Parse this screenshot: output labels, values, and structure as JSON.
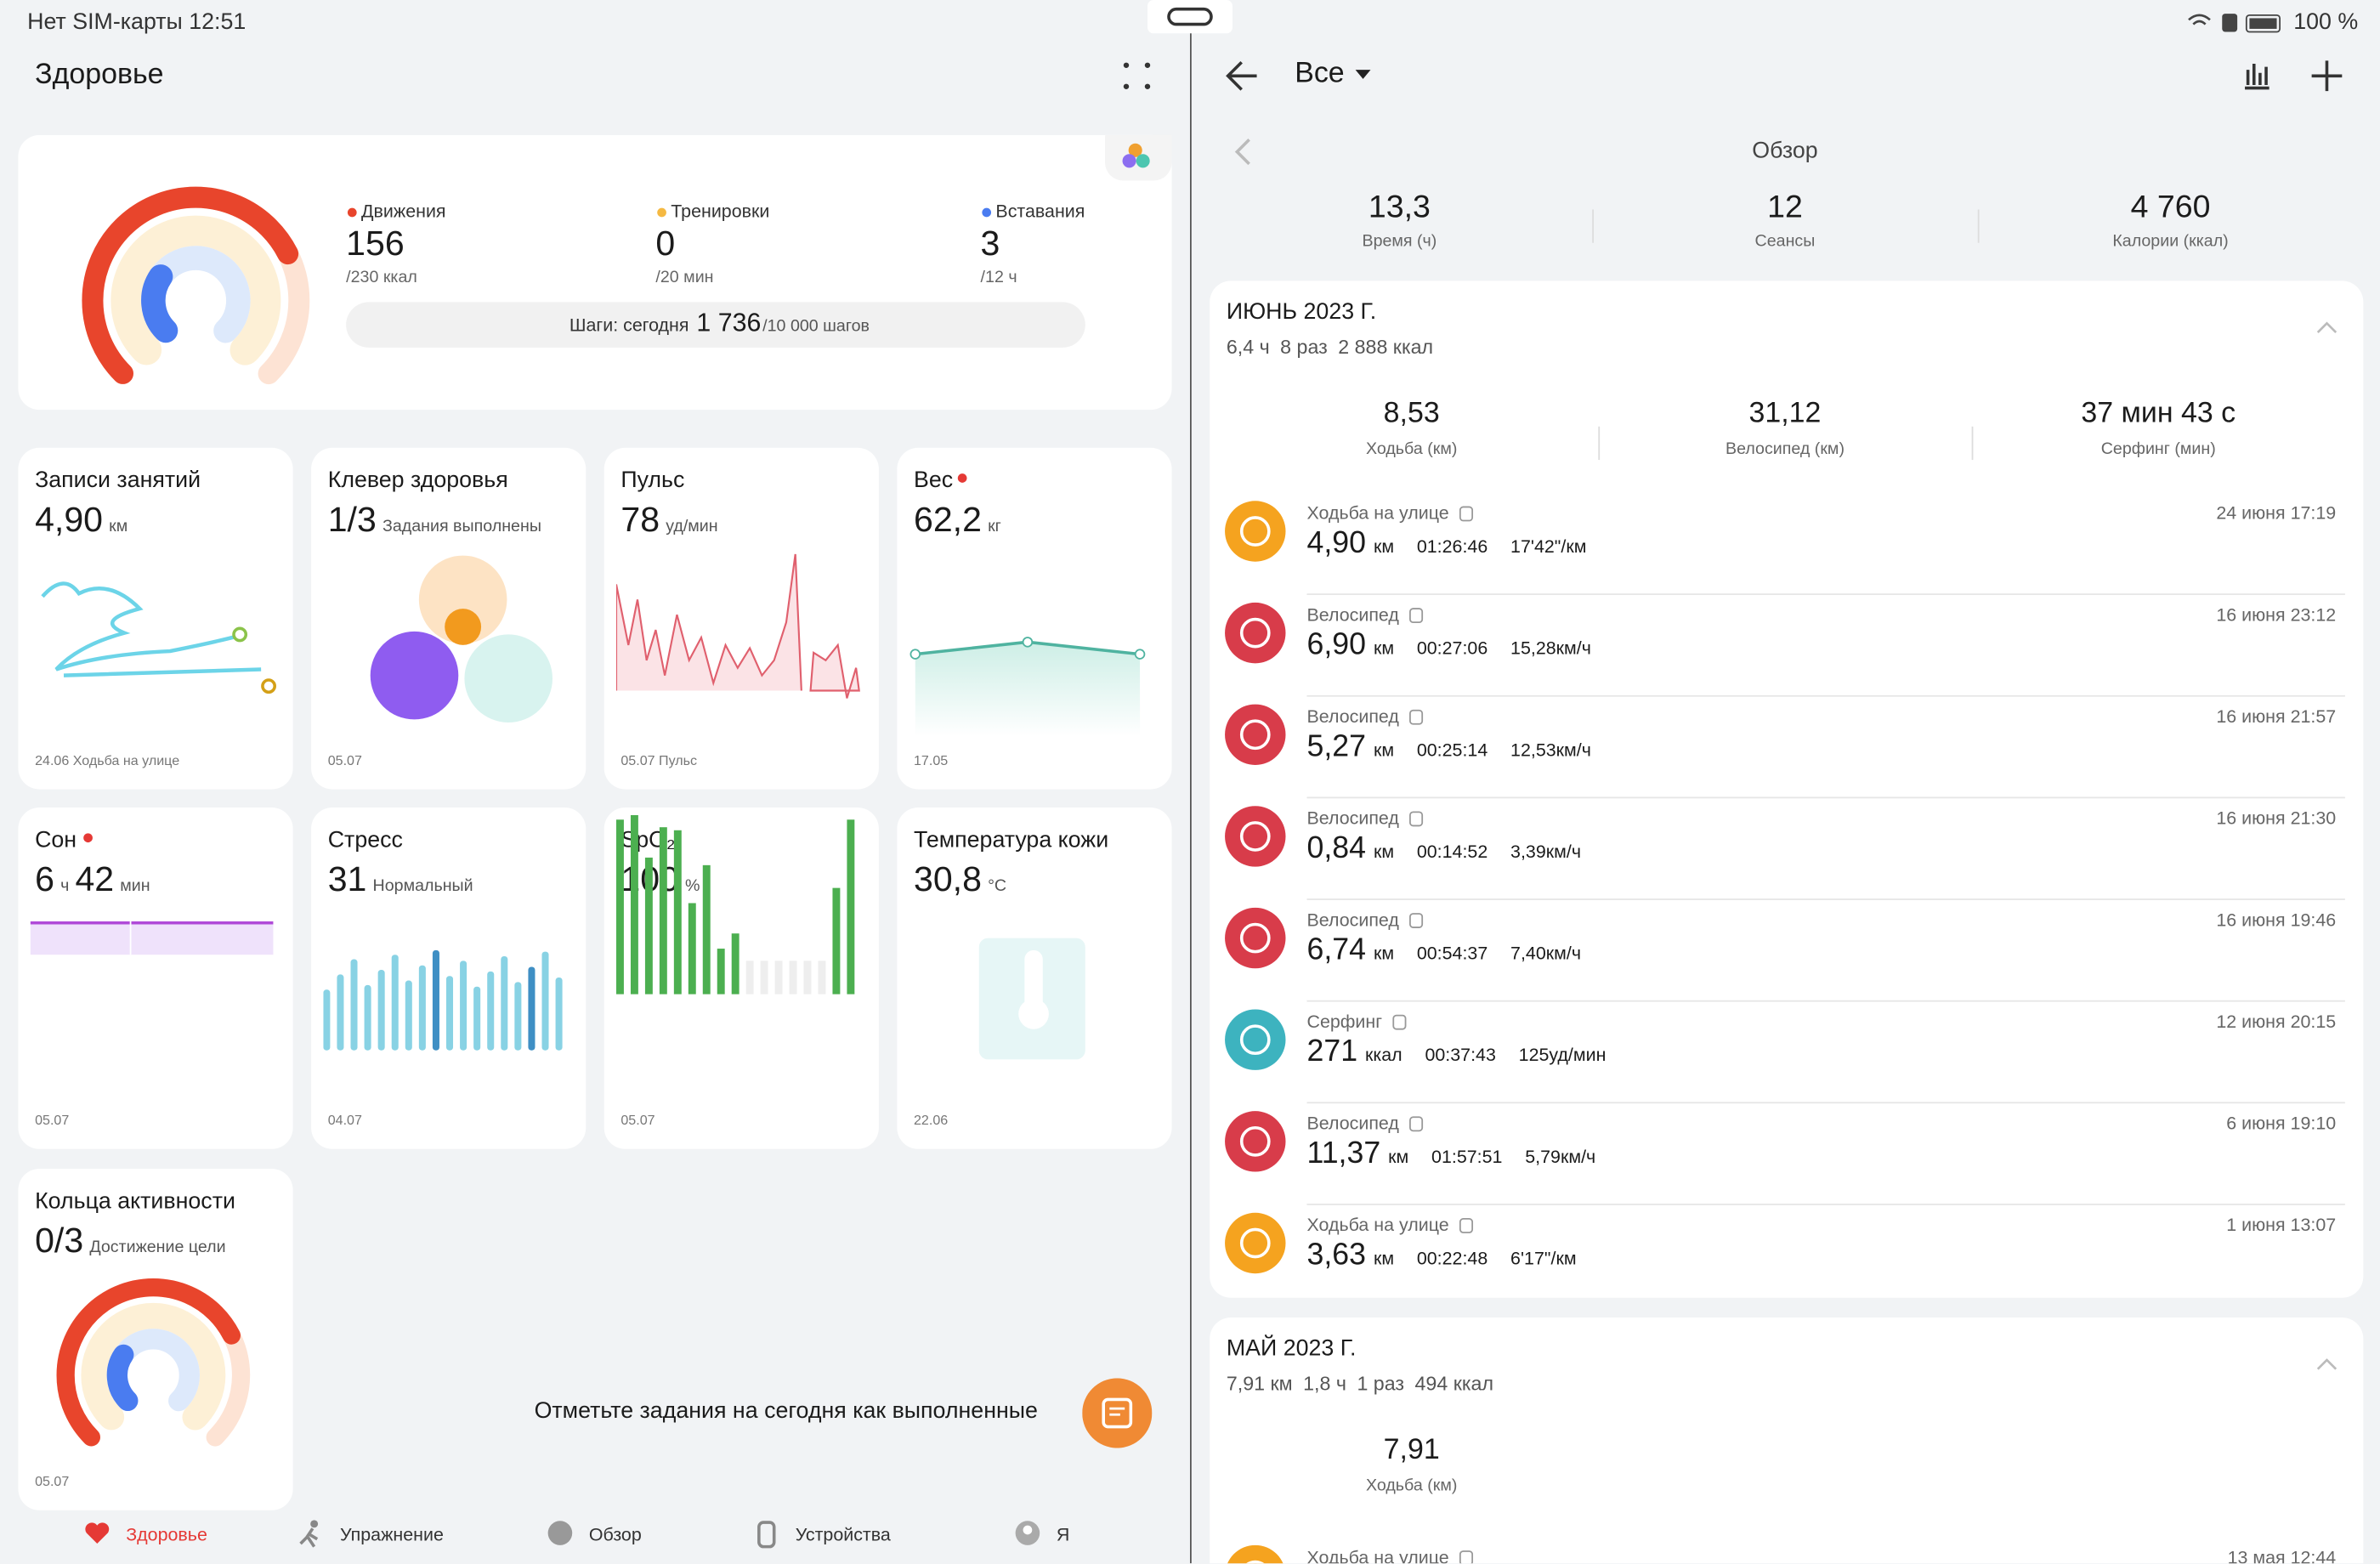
{
  "status_bar": {
    "carrier_time": "Нет SIM-карты 12:51",
    "battery": "100 %"
  },
  "health": {
    "title": "Здоровье",
    "activity": {
      "metrics": [
        {
          "label": "Движения",
          "value": "156",
          "target": "/230 ккал",
          "color": "#e8452c"
        },
        {
          "label": "Тренировки",
          "value": "0",
          "target": "/20 мин",
          "color": "#f5b942"
        },
        {
          "label": "Вставания",
          "value": "3",
          "target": "/12 ч",
          "color": "#4a7cf0"
        }
      ],
      "steps": {
        "label": "Шаги: сегодня",
        "value": "1 736",
        "target": "/10 000 шагов"
      }
    },
    "cards": [
      {
        "title": "Записи занятий",
        "value": "4,90",
        "unit": "км",
        "footer": "24.06 Ходьба на улице"
      },
      {
        "title": "Клевер здоровья",
        "value": "1/3",
        "unit": "Задания выполнены",
        "footer": "05.07"
      },
      {
        "title": "Пульс",
        "value": "78",
        "unit": "уд/мин",
        "footer": "05.07 Пульс"
      },
      {
        "title": "Вес",
        "value": "62,2",
        "unit": "кг",
        "footer": "17.05"
      },
      {
        "title": "Сон",
        "value": "6",
        "unit": "ч",
        "value2": "42",
        "unit2": "мин",
        "footer": "05.07"
      },
      {
        "title": "Стресс",
        "value": "31",
        "unit": "Нормальный",
        "footer": "04.07"
      },
      {
        "title": "SpO₂",
        "value": "100",
        "unit": "%",
        "footer": "05.07"
      },
      {
        "title": "Температура кожи",
        "value": "30,8",
        "unit": "°C",
        "footer": "22.06"
      },
      {
        "title": "Кольца активности",
        "value": "0/3",
        "unit": "Достижение цели",
        "footer": "05.07"
      }
    ],
    "prompt": "Отметьте задания на сегодня как выполненные",
    "nav": [
      "Здоровье",
      "Упражнение",
      "Обзор",
      "Устройства",
      "Я"
    ]
  },
  "exercise": {
    "filter": "Все",
    "overview": {
      "title": "Обзор",
      "stats": [
        {
          "value": "13,3",
          "label": "Время (ч)"
        },
        {
          "value": "12",
          "label": "Сеансы"
        },
        {
          "value": "4 760",
          "label": "Калории (ккал)"
        }
      ]
    },
    "months": [
      {
        "title": "ИЮНЬ 2023 Г.",
        "summary": [
          "6,4 ч",
          "8 раз",
          "2 888 ккал"
        ],
        "stats": [
          {
            "value": "8,53",
            "label": "Ходьба (км)"
          },
          {
            "value": "31,12",
            "label": "Велосипед (км)"
          },
          {
            "value": "37 мин 43 с",
            "label": "Серфинг (мин)"
          }
        ],
        "records": [
          {
            "type": "Ходьба на улице",
            "date": "24 июня 17:19",
            "value": "4,90",
            "unit": "км",
            "duration": "01:26:46",
            "pace": "17'42\"/км",
            "color": "#f5a31f"
          },
          {
            "type": "Велосипед",
            "date": "16 июня 23:12",
            "value": "6,90",
            "unit": "км",
            "duration": "00:27:06",
            "pace": "15,28км/ч",
            "color": "#d83c4a"
          },
          {
            "type": "Велосипед",
            "date": "16 июня 21:57",
            "value": "5,27",
            "unit": "км",
            "duration": "00:25:14",
            "pace": "12,53км/ч",
            "color": "#d83c4a"
          },
          {
            "type": "Велосипед",
            "date": "16 июня 21:30",
            "value": "0,84",
            "unit": "км",
            "duration": "00:14:52",
            "pace": "3,39км/ч",
            "color": "#d83c4a"
          },
          {
            "type": "Велосипед",
            "date": "16 июня 19:46",
            "value": "6,74",
            "unit": "км",
            "duration": "00:54:37",
            "pace": "7,40км/ч",
            "color": "#d83c4a"
          },
          {
            "type": "Серфинг",
            "date": "12 июня 20:15",
            "value": "271",
            "unit": "ккал",
            "duration": "00:37:43",
            "pace": "125уд/мин",
            "color": "#3db3bf"
          },
          {
            "type": "Велосипед",
            "date": "6 июня 19:10",
            "value": "11,37",
            "unit": "км",
            "duration": "01:57:51",
            "pace": "5,79км/ч",
            "color": "#d83c4a"
          },
          {
            "type": "Ходьба на улице",
            "date": "1 июня 13:07",
            "value": "3,63",
            "unit": "км",
            "duration": "00:22:48",
            "pace": "6'17\"/км",
            "color": "#f5a31f"
          }
        ]
      },
      {
        "title": "МАЙ 2023 Г.",
        "summary": [
          "7,91 км",
          "1,8 ч",
          "1 раз",
          "494 ккал"
        ],
        "stats": [
          {
            "value": "7,91",
            "label": "Ходьба (км)"
          }
        ],
        "records": [
          {
            "type": "Ходьба на улице",
            "date": "13 мая 12:44",
            "color": "#f5a31f"
          }
        ]
      }
    ]
  }
}
